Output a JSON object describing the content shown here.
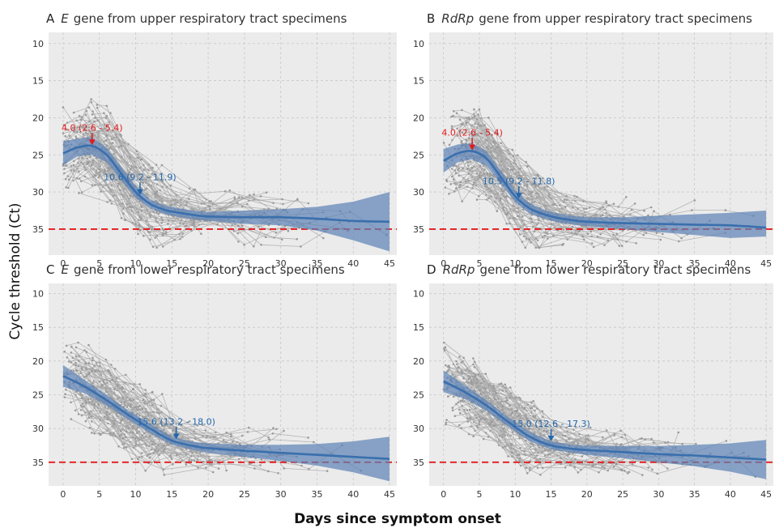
{
  "figure": {
    "ylabel": "Cycle threshold (Ct)",
    "xlabel": "Days since symptom onset"
  },
  "chart_data": [
    {
      "type": "line",
      "panel_letter": "A",
      "gene": "E",
      "title_rest": "gene from upper respiratory tract specimens",
      "xlim": [
        -2,
        46
      ],
      "ylim": [
        38.5,
        8.5
      ],
      "y_reversed": true,
      "xticks": [
        0,
        5,
        10,
        15,
        20,
        25,
        30,
        35,
        40,
        45
      ],
      "yticks": [
        10,
        15,
        20,
        25,
        30,
        35
      ],
      "grid": true,
      "threshold": 35,
      "fit": {
        "x": [
          0,
          2,
          4,
          6,
          8,
          10,
          12,
          14,
          16,
          18,
          20,
          25,
          30,
          35,
          40,
          45
        ],
        "y": [
          24.8,
          24.0,
          23.8,
          25.0,
          27.5,
          30.0,
          31.6,
          32.4,
          32.8,
          33.1,
          33.3,
          33.4,
          33.4,
          33.6,
          33.9,
          34.0
        ],
        "ci_upper": [
          26.4,
          25.2,
          25.0,
          26.0,
          28.4,
          30.8,
          32.2,
          33.0,
          33.4,
          33.7,
          33.9,
          34.3,
          34.5,
          35.2,
          36.5,
          38.0
        ],
        "ci_lower": [
          23.2,
          22.8,
          22.6,
          24.0,
          26.6,
          29.2,
          31.0,
          31.8,
          32.2,
          32.5,
          32.7,
          32.5,
          32.3,
          32.0,
          31.3,
          30.0
        ]
      },
      "annotations": [
        {
          "x": 4.0,
          "y": 23.8,
          "text": "4.0 (2.6 - 5.4)",
          "color": "#e31a1c"
        },
        {
          "x": 10.6,
          "y": 30.5,
          "text": "10.6 (9.2 - 11.9)",
          "color": "#2166ac"
        }
      ]
    },
    {
      "type": "line",
      "panel_letter": "B",
      "gene": "RdRp",
      "title_rest": "gene from upper respiratory tract specimens",
      "xlim": [
        -2,
        46
      ],
      "ylim": [
        38.5,
        8.5
      ],
      "y_reversed": true,
      "xticks": [
        0,
        5,
        10,
        15,
        20,
        25,
        30,
        35,
        40,
        45
      ],
      "yticks": [
        10,
        15,
        20,
        25,
        30,
        35
      ],
      "grid": true,
      "threshold": 35,
      "fit": {
        "x": [
          0,
          2,
          4,
          6,
          8,
          10,
          12,
          14,
          16,
          18,
          20,
          25,
          30,
          35,
          40,
          45
        ],
        "y": [
          25.8,
          24.8,
          24.5,
          25.5,
          28.0,
          30.6,
          32.2,
          33.0,
          33.5,
          33.8,
          34.0,
          34.2,
          34.3,
          34.4,
          34.5,
          34.8
        ],
        "ci_upper": [
          27.4,
          26.0,
          25.6,
          26.5,
          28.9,
          31.4,
          32.9,
          33.6,
          34.1,
          34.4,
          34.6,
          35.0,
          35.4,
          35.8,
          36.2,
          36.0
        ],
        "ci_lower": [
          24.2,
          23.6,
          23.4,
          24.5,
          27.1,
          29.8,
          31.5,
          32.4,
          32.9,
          33.2,
          33.4,
          33.4,
          33.2,
          33.0,
          32.8,
          32.5
        ]
      },
      "annotations": [
        {
          "x": 4.0,
          "y": 24.5,
          "text": "4.0 (2.6 - 5.4)",
          "color": "#e31a1c"
        },
        {
          "x": 10.5,
          "y": 31.0,
          "text": "10.5 (9.2 - 11.8)",
          "color": "#2166ac"
        }
      ]
    },
    {
      "type": "line",
      "panel_letter": "C",
      "gene": "E",
      "title_rest": "gene from lower respiratory tract specimens",
      "xlim": [
        -2,
        46
      ],
      "ylim": [
        38.5,
        8.5
      ],
      "y_reversed": true,
      "xticks": [
        0,
        5,
        10,
        15,
        20,
        25,
        30,
        35,
        40,
        45
      ],
      "yticks": [
        10,
        15,
        20,
        25,
        30,
        35
      ],
      "grid": true,
      "threshold": 35,
      "fit": {
        "x": [
          0,
          3,
          6,
          9,
          12,
          15,
          18,
          20,
          25,
          30,
          35,
          40,
          45
        ],
        "y": [
          22.2,
          23.8,
          25.8,
          28.0,
          30.0,
          31.8,
          32.6,
          32.9,
          33.3,
          33.6,
          33.9,
          34.2,
          34.5
        ],
        "ci_upper": [
          23.8,
          24.8,
          26.6,
          28.7,
          30.7,
          32.4,
          33.2,
          33.6,
          34.2,
          34.8,
          35.5,
          36.5,
          37.8
        ],
        "ci_lower": [
          20.6,
          22.8,
          25.0,
          27.3,
          29.3,
          31.2,
          32.0,
          32.2,
          32.4,
          32.4,
          32.3,
          31.9,
          31.2
        ]
      },
      "annotations": [
        {
          "x": 15.6,
          "y": 31.7,
          "text": "15.6 (13.2 - 18.0)",
          "color": "#2166ac"
        }
      ]
    },
    {
      "type": "line",
      "panel_letter": "D",
      "gene": "RdRp",
      "title_rest": "gene from lower respiratory tract specimens",
      "xlim": [
        -2,
        46
      ],
      "ylim": [
        38.5,
        8.5
      ],
      "y_reversed": true,
      "xticks": [
        0,
        5,
        10,
        15,
        20,
        25,
        30,
        35,
        40,
        45
      ],
      "yticks": [
        10,
        15,
        20,
        25,
        30,
        35
      ],
      "grid": true,
      "threshold": 35,
      "fit": {
        "x": [
          0,
          3,
          6,
          9,
          12,
          15,
          18,
          20,
          25,
          30,
          35,
          40,
          45
        ],
        "y": [
          23.0,
          24.6,
          26.6,
          29.0,
          31.2,
          32.5,
          33.0,
          33.2,
          33.5,
          33.8,
          34.0,
          34.3,
          34.6
        ],
        "ci_upper": [
          24.6,
          25.6,
          27.4,
          29.7,
          31.9,
          33.1,
          33.6,
          33.9,
          34.4,
          35.0,
          35.6,
          36.4,
          37.5
        ],
        "ci_lower": [
          21.4,
          23.6,
          25.8,
          28.3,
          30.5,
          31.9,
          32.4,
          32.5,
          32.6,
          32.6,
          32.4,
          32.2,
          31.7
        ]
      },
      "annotations": [
        {
          "x": 15.0,
          "y": 32.0,
          "text": "15.0 (12.6 - 17.3)",
          "color": "#2166ac"
        }
      ]
    }
  ],
  "colors": {
    "panel_bg": "#ebebeb",
    "grid": "#c8c8c8",
    "raw_lines": "#aaaaaa",
    "fit_line": "#3a6fad",
    "ci_band": "#5b82b5",
    "threshold": "#e31a1c",
    "peak_annotation": "#e31a1c",
    "plateau_annotation": "#2166ac"
  }
}
